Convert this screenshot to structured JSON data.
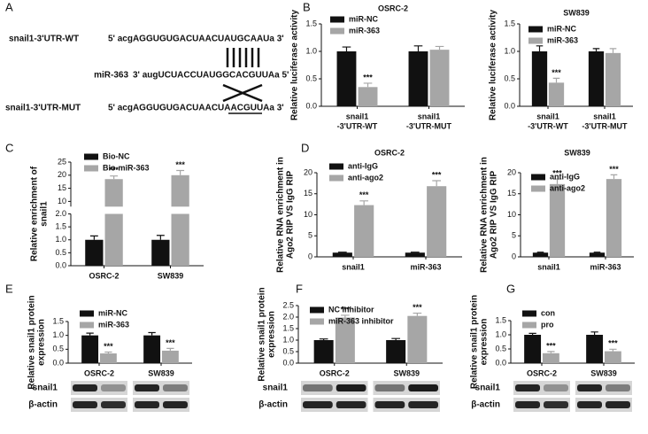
{
  "panel_labels": [
    "A",
    "B",
    "C",
    "D",
    "E",
    "F",
    "G"
  ],
  "sequence_panel": {
    "rows": [
      {
        "label": "snail1-3'UTR-WT",
        "sequence": "5' acgAGGUGUGACUAACUAUGCAAUa 3'"
      },
      {
        "label": "miR-363",
        "sequence": "3' augUCUACCUAUGGCACGUUAa 5'"
      },
      {
        "label": "snail1-3'UTR-MUT",
        "sequence": "5' acgAGGUGUGACUAACUAACGUUAa 3'"
      }
    ]
  },
  "chart_data": [
    {
      "type": "bar",
      "title": "OSRC-2",
      "y_label": [
        "Relative luciferase activity"
      ],
      "categories": [
        [
          "snail1",
          "-3'UTR-WT"
        ],
        [
          "snail1",
          "-3'UTR-MUT"
        ]
      ],
      "series": [
        {
          "name": "miR-NC",
          "color": "#111111",
          "values": [
            1.0,
            1.0
          ],
          "errors": [
            0.08,
            0.1
          ]
        },
        {
          "name": "miR-363",
          "color": "#a6a6a6",
          "values": [
            0.35,
            1.03
          ],
          "errors": [
            0.07,
            0.06
          ],
          "annotations": [
            "***",
            null
          ]
        }
      ],
      "ylim": [
        0,
        1.5
      ],
      "yticks": [
        {
          "value": 0,
          "label": "0.0"
        },
        0.5,
        {
          "value": 1,
          "label": "1.0"
        },
        1.5
      ]
    },
    {
      "type": "bar",
      "title": "SW839",
      "y_label": [
        "Relative luciferase activity"
      ],
      "categories": [
        [
          "snail1",
          "-3'UTR-WT"
        ],
        [
          "snail1",
          "-3'UTR-MUT"
        ]
      ],
      "series": [
        {
          "name": "miR-NC",
          "color": "#111111",
          "values": [
            1.0,
            1.0
          ],
          "errors": [
            0.1,
            0.05
          ]
        },
        {
          "name": "miR-363",
          "color": "#a6a6a6",
          "values": [
            0.43,
            0.97
          ],
          "errors": [
            0.08,
            0.08
          ],
          "annotations": [
            "***",
            null
          ]
        }
      ],
      "ylim": [
        0,
        1.5
      ],
      "yticks": [
        {
          "value": 0,
          "label": "0.0"
        },
        0.5,
        {
          "value": 1,
          "label": "1.0"
        },
        1.5
      ]
    },
    {
      "type": "bar",
      "y_label": [
        "Relative enrichment of",
        "snail1"
      ],
      "categories": [
        [
          "OSRC-2"
        ],
        [
          "SW839"
        ]
      ],
      "series": [
        {
          "name": "Bio-NC",
          "color": "#111111",
          "values": [
            1.0,
            1.0
          ],
          "errors": [
            0.15,
            0.17
          ]
        },
        {
          "name": "Bio-miR-363",
          "color": "#a6a6a6",
          "values": [
            18.5,
            20.0
          ],
          "errors": [
            1.2,
            1.8
          ],
          "annotations": [
            "***",
            "***"
          ]
        }
      ],
      "ylim": [
        0,
        25
      ],
      "axis_break": [
        2,
        8
      ],
      "yticks": [
        {
          "value": 0,
          "label": "0.0"
        },
        0.5,
        {
          "value": 1,
          "label": "1.0"
        },
        1.5,
        {
          "value": 2,
          "label": "2.0"
        },
        10,
        15,
        20,
        25
      ]
    },
    {
      "type": "bar",
      "title": "OSRC-2",
      "y_label": [
        "Relative RNA enrichment in",
        "Ago2 RIP VS IgG RIP"
      ],
      "categories": [
        [
          "snail1"
        ],
        [
          "miR-363"
        ]
      ],
      "series": [
        {
          "name": "anti-IgG",
          "color": "#111111",
          "values": [
            1.0,
            1.0
          ],
          "errors": [
            0.1,
            0.1
          ]
        },
        {
          "name": "anti-ago2",
          "color": "#a6a6a6",
          "values": [
            12.3,
            16.8
          ],
          "errors": [
            1.0,
            1.3
          ],
          "annotations": [
            "***",
            "***"
          ]
        }
      ],
      "ylim": [
        0,
        20
      ],
      "yticks": [
        0,
        5,
        10,
        15,
        20
      ]
    },
    {
      "type": "bar",
      "title": "SW839",
      "y_label": [
        "Relative RNA enrichment in",
        "Ago2 RIP VS IgG RIP"
      ],
      "categories": [
        [
          "snail1"
        ],
        [
          "miR-363"
        ]
      ],
      "series": [
        {
          "name": "anti-IgG",
          "color": "#111111",
          "values": [
            1.0,
            1.0
          ],
          "errors": [
            0.1,
            0.1
          ]
        },
        {
          "name": "anti-ago2",
          "color": "#a6a6a6",
          "values": [
            17.3,
            18.5
          ],
          "errors": [
            1.2,
            1.0
          ],
          "annotations": [
            "***",
            "***"
          ]
        }
      ],
      "ylim": [
        0,
        20
      ],
      "yticks": [
        0,
        5,
        10,
        15,
        20
      ]
    },
    {
      "type": "bar",
      "y_label": [
        "Relative snail1 protein",
        "expression"
      ],
      "categories": [
        [
          "OSRC-2"
        ],
        [
          "SW839"
        ]
      ],
      "series": [
        {
          "name": "miR-NC",
          "color": "#111111",
          "values": [
            1.0,
            1.0
          ],
          "errors": [
            0.08,
            0.1
          ]
        },
        {
          "name": "miR-363",
          "color": "#a6a6a6",
          "values": [
            0.35,
            0.45
          ],
          "errors": [
            0.05,
            0.08
          ],
          "annotations": [
            "***",
            "***"
          ]
        }
      ],
      "ylim": [
        0,
        1.5
      ],
      "yticks": [
        {
          "value": 0,
          "label": "0.0"
        },
        0.5,
        {
          "value": 1,
          "label": "1.0"
        },
        1.5
      ],
      "blot_labels": [
        "snail1",
        "β-actin"
      ]
    },
    {
      "type": "bar",
      "y_label": [
        "Relative snail1 protein",
        "expression"
      ],
      "categories": [
        [
          "OSRC-2"
        ],
        [
          "SW839"
        ]
      ],
      "series": [
        {
          "name": "NC inhibitor",
          "color": "#111111",
          "values": [
            1.0,
            1.0
          ],
          "errors": [
            0.05,
            0.07
          ]
        },
        {
          "name": "miR-363 inhibitor",
          "color": "#a6a6a6",
          "values": [
            1.98,
            2.05
          ],
          "errors": [
            0.1,
            0.12
          ],
          "annotations": [
            "***",
            "***"
          ]
        }
      ],
      "ylim": [
        0,
        2.5
      ],
      "yticks": [
        {
          "value": 0,
          "label": "0.0"
        },
        0.5,
        {
          "value": 1,
          "label": "1.0"
        },
        1.5,
        {
          "value": 2,
          "label": "2.0"
        },
        2.5
      ],
      "blot_labels": [
        "snail1",
        "β-actin"
      ]
    },
    {
      "type": "bar",
      "y_label": [
        "Relative snail1 protein",
        "expression"
      ],
      "categories": [
        [
          "OSRC-2"
        ],
        [
          "SW839"
        ]
      ],
      "series": [
        {
          "name": "con",
          "color": "#111111",
          "values": [
            1.0,
            1.0
          ],
          "errors": [
            0.05,
            0.1
          ]
        },
        {
          "name": "pro",
          "color": "#a6a6a6",
          "values": [
            0.35,
            0.42
          ],
          "errors": [
            0.06,
            0.07
          ],
          "annotations": [
            "***",
            "***"
          ]
        }
      ],
      "ylim": [
        0,
        1.5
      ],
      "yticks": [
        {
          "value": 0,
          "label": "0.0"
        },
        0.5,
        {
          "value": 1,
          "label": "1.0"
        },
        1.5
      ],
      "blot_labels": [
        "snail1",
        "β-actin"
      ]
    }
  ]
}
